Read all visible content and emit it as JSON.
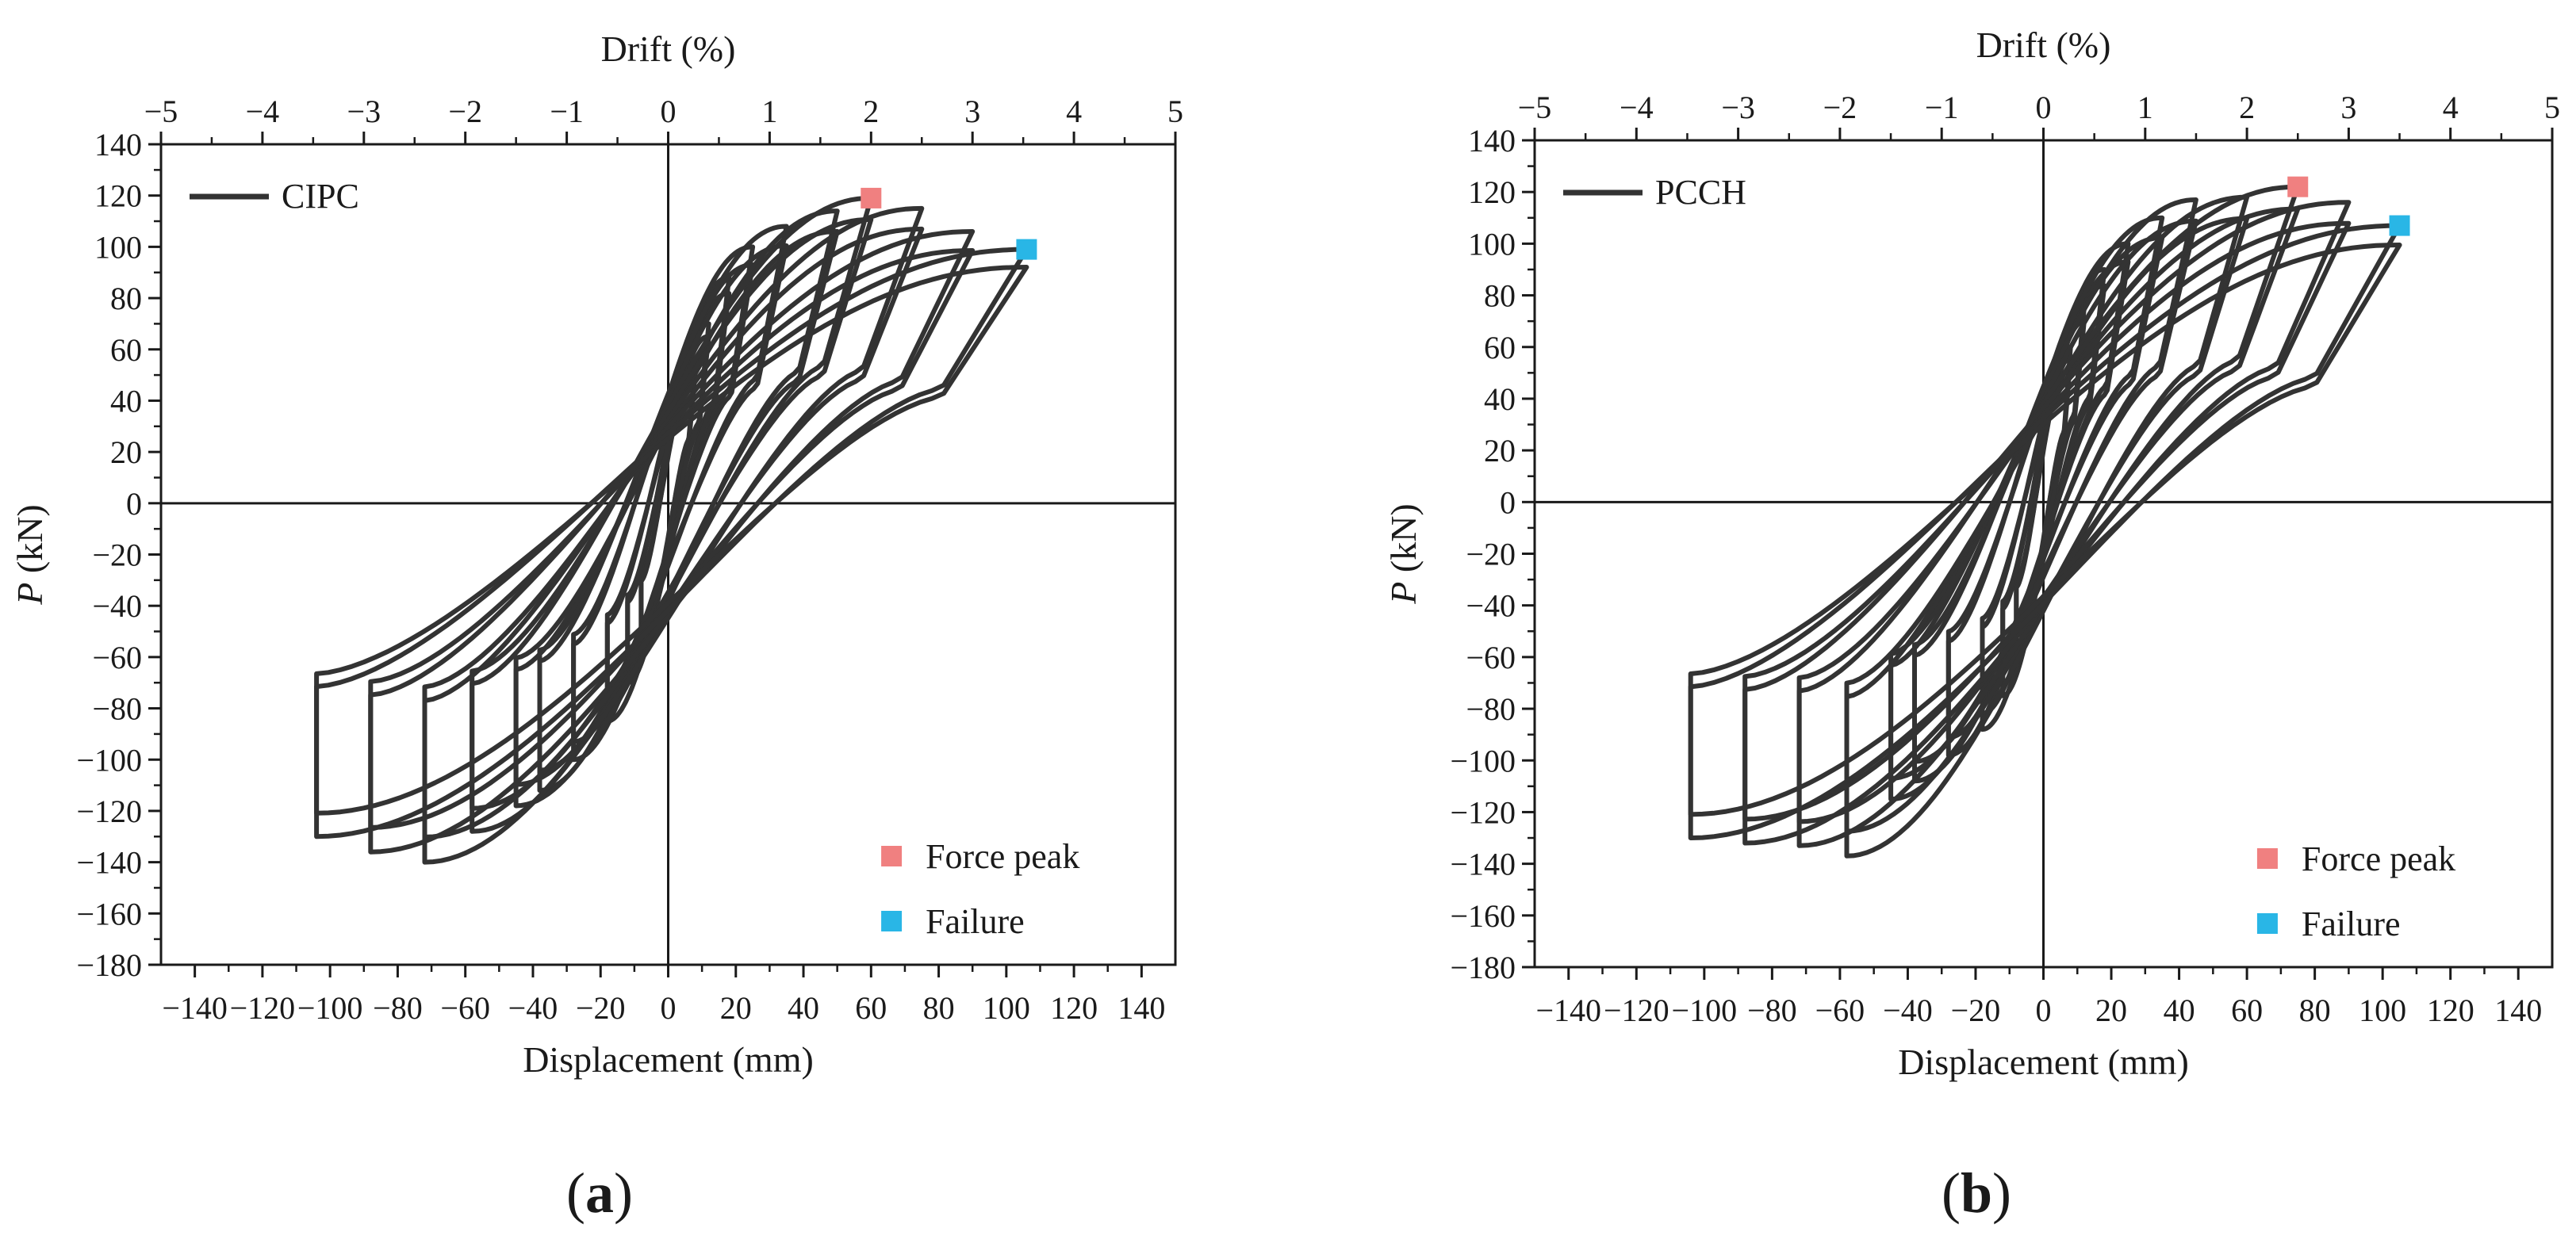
{
  "chart_data": [
    {
      "type": "line",
      "panel": "a",
      "panel_label_open": "(",
      "panel_label_letter": "a",
      "panel_label_close": ")",
      "xlabel": "Displacement (mm)",
      "ylabel_italic": "P",
      "ylabel_rest": " (kN)",
      "x2label": "Drift (%)",
      "xlim": [
        -150,
        150
      ],
      "ylim": [
        -180,
        140
      ],
      "x2lim": [
        -5,
        5
      ],
      "xticks": [
        -140,
        -120,
        -100,
        -80,
        -60,
        -40,
        -20,
        0,
        20,
        40,
        60,
        80,
        100,
        120,
        140
      ],
      "yticks": [
        -180,
        -160,
        -140,
        -120,
        -100,
        -80,
        -60,
        -40,
        -20,
        0,
        20,
        40,
        60,
        80,
        100,
        120,
        140
      ],
      "x2ticks": [
        -5,
        -4,
        -3,
        -2,
        -1,
        0,
        1,
        2,
        3,
        4,
        5
      ],
      "legend": {
        "series_label": "CIPC",
        "force_peak_label": "Force peak",
        "failure_label": "Failure"
      },
      "colors": {
        "line": "#333333",
        "force_peak": "#f08080",
        "failure": "#29b6e6"
      },
      "force_peak": {
        "x": 60,
        "y": 119
      },
      "failure": {
        "x": 106,
        "y": 99
      },
      "loops": [
        {
          "dmax": 8,
          "pmax": 55,
          "dmin": -8,
          "pmin": -55
        },
        {
          "dmax": 12,
          "pmax": 70,
          "dmin": -12,
          "pmin": -70
        },
        {
          "dmax": 18,
          "pmax": 88,
          "dmin": -18,
          "pmin": -85
        },
        {
          "dmax": 25,
          "pmax": 100,
          "dmin": -28,
          "pmin": -100
        },
        {
          "dmax": 35,
          "pmax": 108,
          "dmin": -38,
          "pmin": -112
        },
        {
          "dmax": 50,
          "pmax": 114,
          "dmin": -45,
          "pmin": -118
        },
        {
          "dmax": 60,
          "pmax": 119,
          "dmin": -58,
          "pmin": -128
        },
        {
          "dmax": 75,
          "pmax": 115,
          "dmin": -72,
          "pmin": -140
        },
        {
          "dmax": 90,
          "pmax": 106,
          "dmin": -88,
          "pmin": -136
        },
        {
          "dmax": 106,
          "pmax": 99,
          "dmin": -104,
          "pmin": -130
        }
      ]
    },
    {
      "type": "line",
      "panel": "b",
      "panel_label_open": "(",
      "panel_label_letter": "b",
      "panel_label_close": ")",
      "xlabel": "Displacement (mm)",
      "ylabel_italic": "P",
      "ylabel_rest": " (kN)",
      "x2label": "Drift (%)",
      "xlim": [
        -150,
        150
      ],
      "ylim": [
        -180,
        140
      ],
      "x2lim": [
        -5,
        5
      ],
      "xticks": [
        -140,
        -120,
        -100,
        -80,
        -60,
        -40,
        -20,
        0,
        20,
        40,
        60,
        80,
        100,
        120,
        140
      ],
      "yticks": [
        -180,
        -160,
        -140,
        -120,
        -100,
        -80,
        -60,
        -40,
        -20,
        0,
        20,
        40,
        60,
        80,
        100,
        120,
        140
      ],
      "x2ticks": [
        -5,
        -4,
        -3,
        -2,
        -1,
        0,
        1,
        2,
        3,
        4,
        5
      ],
      "legend": {
        "series_label": "PCCH",
        "force_peak_label": "Force peak",
        "failure_label": "Failure"
      },
      "colors": {
        "line": "#333333",
        "force_peak": "#f08080",
        "failure": "#29b6e6"
      },
      "force_peak": {
        "x": 75,
        "y": 122
      },
      "failure": {
        "x": 105,
        "y": 107
      },
      "loops": [
        {
          "dmax": 8,
          "pmax": 60,
          "dmin": -8,
          "pmin": -60
        },
        {
          "dmax": 12,
          "pmax": 75,
          "dmin": -12,
          "pmin": -75
        },
        {
          "dmax": 18,
          "pmax": 90,
          "dmin": -18,
          "pmin": -88
        },
        {
          "dmax": 25,
          "pmax": 100,
          "dmin": -28,
          "pmin": -98
        },
        {
          "dmax": 35,
          "pmax": 110,
          "dmin": -38,
          "pmin": -108
        },
        {
          "dmax": 45,
          "pmax": 117,
          "dmin": -45,
          "pmin": -115
        },
        {
          "dmax": 60,
          "pmax": 118,
          "dmin": -58,
          "pmin": -137
        },
        {
          "dmax": 75,
          "pmax": 122,
          "dmin": -72,
          "pmin": -133
        },
        {
          "dmax": 90,
          "pmax": 116,
          "dmin": -88,
          "pmin": -132
        },
        {
          "dmax": 105,
          "pmax": 107,
          "dmin": -104,
          "pmin": -130
        }
      ]
    }
  ]
}
